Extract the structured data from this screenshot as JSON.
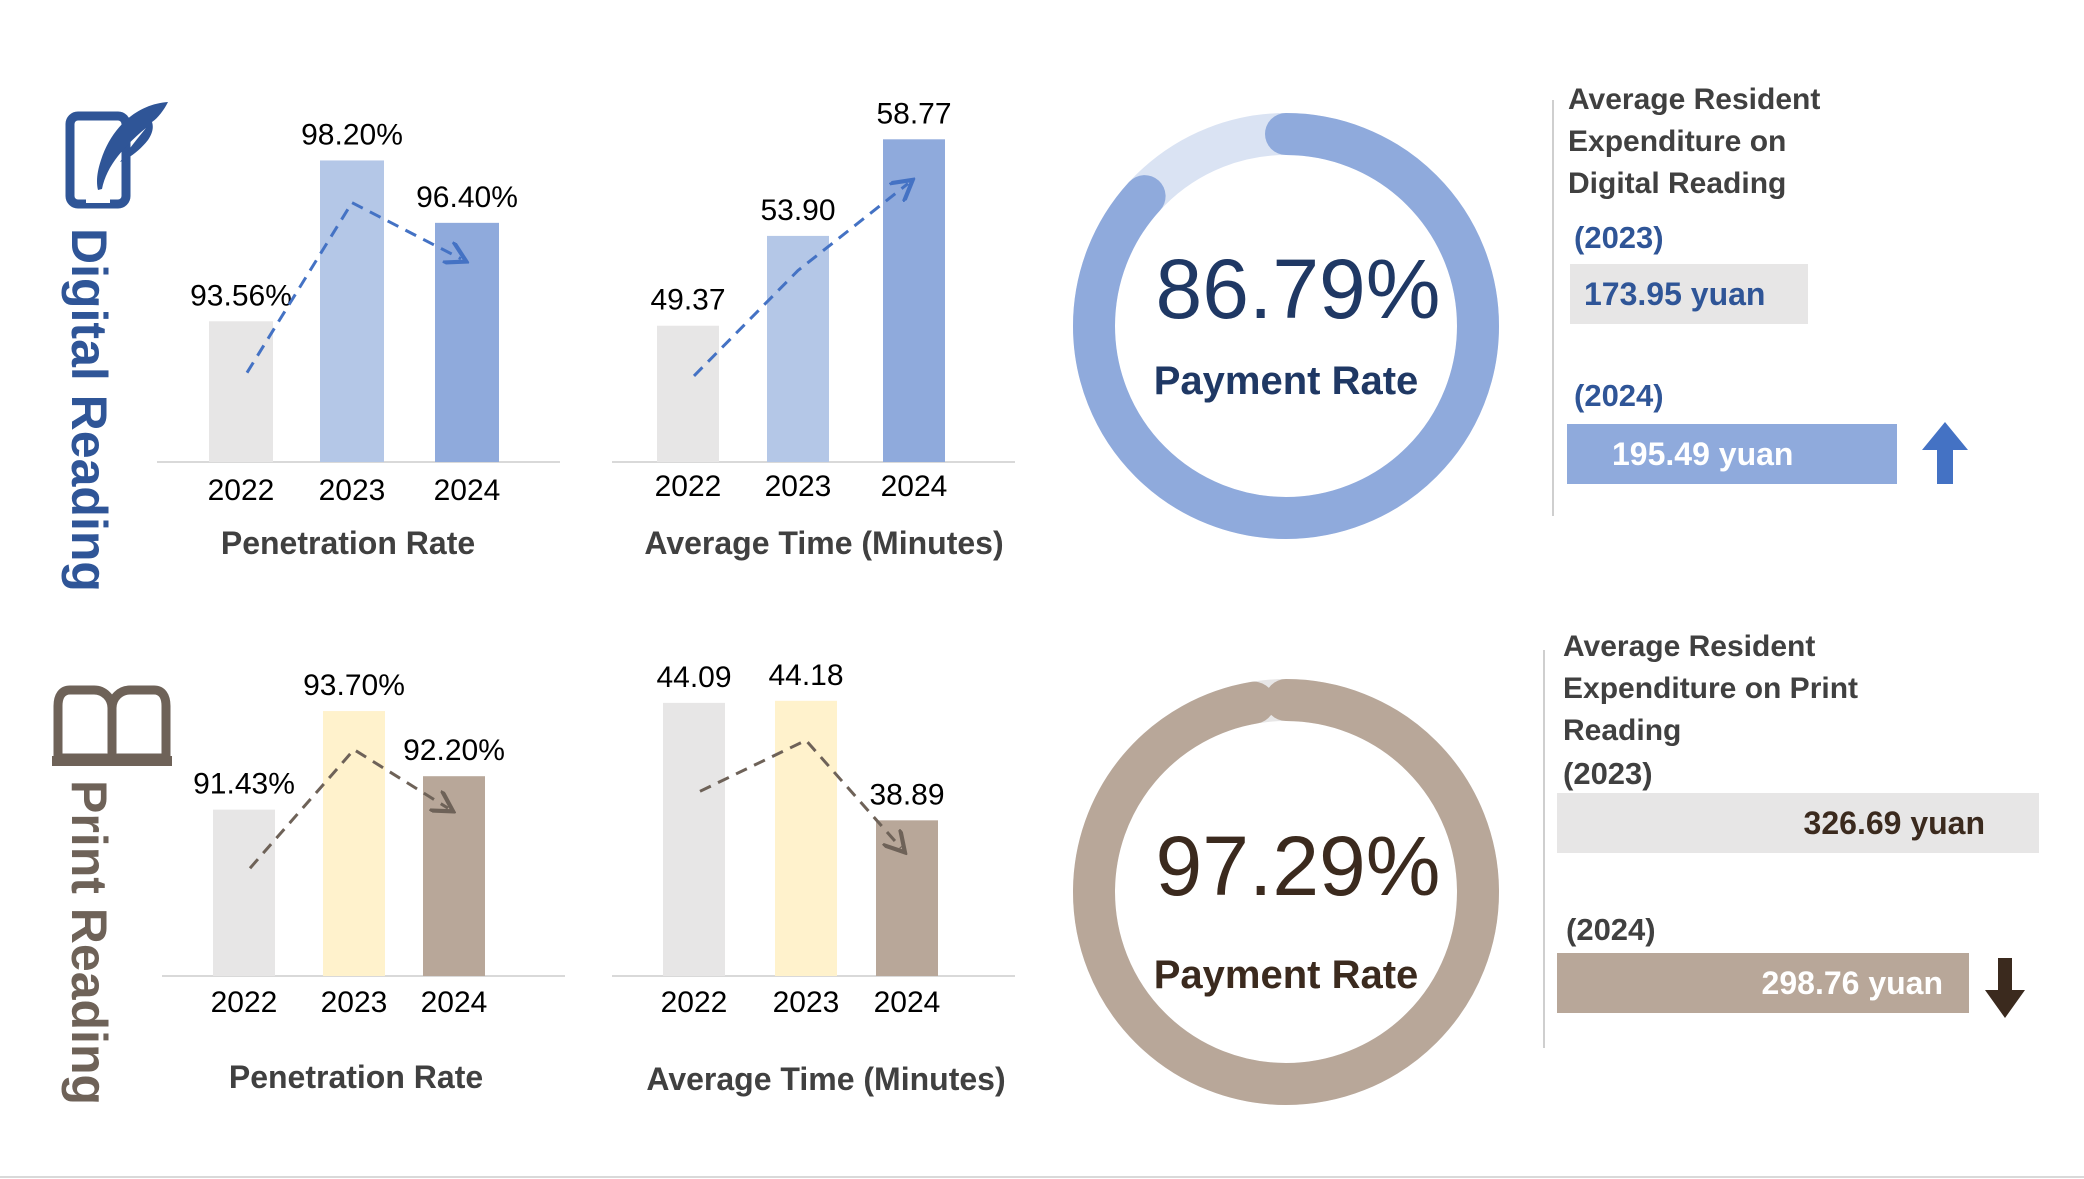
{
  "digital": {
    "title": "Digital Reading",
    "icon": "tablet-feather-icon",
    "color": "#2f5597",
    "payment_rate": {
      "value": 86.79,
      "label_value": "86.79%",
      "label": "Payment Rate",
      "ring_color": "#8faadc",
      "track_color": "#dae3f3"
    },
    "expenditure": {
      "title": "Average Resident Expenditure on Digital Reading",
      "y2023_label": "(2023)",
      "y2023_value": "173.95 yuan",
      "y2024_label": "(2024)",
      "y2024_value": "195.49 yuan",
      "trend": "up-arrow-icon",
      "arrow_color": "#4472c4"
    }
  },
  "print": {
    "title": "Print Reading",
    "icon": "open-book-icon",
    "color": "#6e6258",
    "payment_rate": {
      "value": 97.29,
      "label_value": "97.29%",
      "label": "Payment Rate",
      "ring_color": "#b8a799",
      "track_color": "#e7e6e6"
    },
    "expenditure": {
      "title": "Average Resident Expenditure on Print Reading",
      "y2023_label": "(2023)",
      "y2023_value": "326.69 yuan",
      "y2024_label": "(2024)",
      "y2024_value": "298.76 yuan",
      "trend": "down-arrow-icon",
      "arrow_color": "#3b2a1e"
    }
  },
  "chart_data": [
    {
      "id": "digital-penetration",
      "type": "bar",
      "title": "Penetration Rate",
      "categories": [
        "2022",
        "2023",
        "2024"
      ],
      "values": [
        93.56,
        98.2,
        96.4
      ],
      "labels": [
        "93.56%",
        "98.20%",
        "96.40%"
      ],
      "colors": [
        "#e7e6e6",
        "#b4c7e7",
        "#8faadc"
      ],
      "trend_color": "#4472c4",
      "ylim": [
        89.5,
        99.8
      ]
    },
    {
      "id": "digital-time",
      "type": "bar",
      "title": "Average  Time  (Minutes)",
      "categories": [
        "2022",
        "2023",
        "2024"
      ],
      "values": [
        49.37,
        53.9,
        58.77
      ],
      "labels": [
        "49.37",
        "53.90",
        "58.77"
      ],
      "colors": [
        "#e7e6e6",
        "#b4c7e7",
        "#8faadc"
      ],
      "trend_color": "#4472c4",
      "ylim": [
        42.5,
        60.5
      ]
    },
    {
      "id": "print-penetration",
      "type": "bar",
      "title": "Penetration Rate",
      "categories": [
        "2022",
        "2023",
        "2024"
      ],
      "values": [
        91.43,
        93.7,
        92.2
      ],
      "labels": [
        "91.43%",
        "93.70%",
        "92.20%"
      ],
      "colors": [
        "#e7e6e6",
        "#fff2cc",
        "#b8a799"
      ],
      "trend_color": "#6e6258",
      "ylim": [
        87.6,
        94.3
      ]
    },
    {
      "id": "print-time",
      "type": "bar",
      "title": "Average  Time  (Minutes)",
      "categories": [
        "2022",
        "2023",
        "2024"
      ],
      "values": [
        44.09,
        44.18,
        38.89
      ],
      "labels": [
        "44.09",
        "44.18",
        "38.89"
      ],
      "colors": [
        "#e7e6e6",
        "#fff2cc",
        "#b8a799"
      ],
      "trend_color": "#6e6258",
      "ylim": [
        32.0,
        44.88
      ]
    }
  ]
}
